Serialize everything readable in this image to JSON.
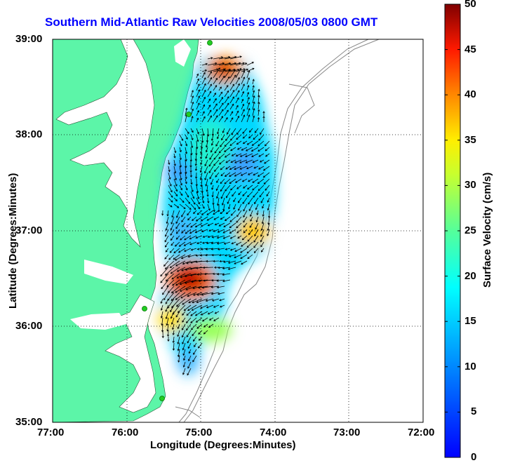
{
  "chart_data": {
    "type": "vector-field map",
    "title": "Southern Mid-Atlantic Raw Velocities 2008/05/03 0800 GMT",
    "xlabel": "Longitude (Degrees:Minutes)",
    "ylabel": "Latitude (Degrees:Minutes)",
    "x_ticks": [
      "77:00",
      "76:00",
      "75:00",
      "74:00",
      "73:00",
      "72:00"
    ],
    "y_ticks": [
      "39:00",
      "38:00",
      "37:00",
      "36:00",
      "35:00"
    ],
    "xlim": [
      -77,
      -72
    ],
    "ylim": [
      35,
      39
    ],
    "grid": true,
    "colorbar": {
      "label": "Surface Velocity (cm/s)",
      "ticks": [
        "50",
        "45",
        "40",
        "35",
        "30",
        "25",
        "20",
        "15",
        "10",
        "5",
        "0"
      ],
      "range": [
        0,
        50
      ]
    },
    "speed_hotspots": [
      {
        "lon": -74.78,
        "lat": 38.72,
        "speed": 48
      },
      {
        "lon": -75.05,
        "lat": 36.4,
        "speed": 46
      },
      {
        "lon": -74.35,
        "lat": 36.9,
        "speed": 30
      },
      {
        "lon": -75.3,
        "lat": 36.15,
        "speed": 27
      },
      {
        "lon": -74.6,
        "lat": 37.7,
        "speed": 8
      },
      {
        "lon": -75.4,
        "lat": 37.6,
        "speed": 9
      }
    ],
    "colors": {
      "land": "#5cf5a8",
      "title": "#0000ff",
      "arrows": "#000000",
      "station": "#22cc22"
    }
  }
}
